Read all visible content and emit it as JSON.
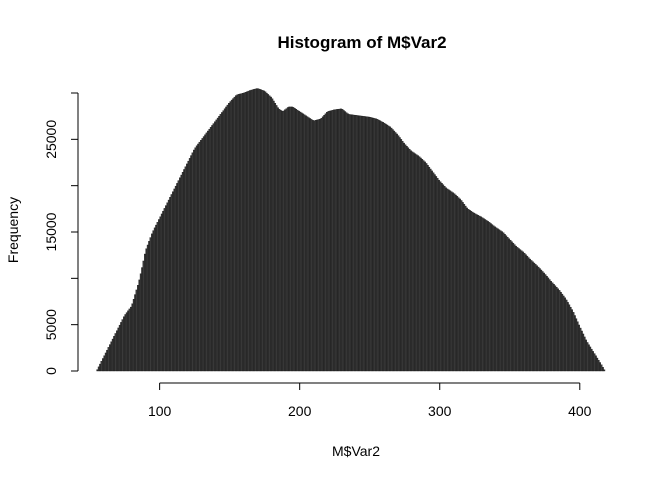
{
  "chart_data": {
    "type": "bar",
    "subtype": "histogram",
    "title": "Histogram of M$Var2",
    "xlabel": "M$Var2",
    "ylabel": "Frequency",
    "xlim": [
      46,
      423
    ],
    "ylim": [
      0,
      30000
    ],
    "x_ticks": [
      100,
      200,
      300,
      400
    ],
    "y_ticks": [
      0,
      5000,
      15000,
      25000
    ],
    "x_tick_labels": [
      "100",
      "200",
      "300",
      "400"
    ],
    "y_tick_labels": [
      "0",
      "5000",
      "15000",
      "25000"
    ],
    "bin_width": 1,
    "bins_range": [
      55,
      418
    ],
    "profile": {
      "x": [
        55,
        60,
        65,
        70,
        75,
        80,
        85,
        88,
        90,
        95,
        100,
        105,
        110,
        115,
        120,
        125,
        130,
        135,
        140,
        145,
        150,
        155,
        160,
        165,
        170,
        175,
        180,
        185,
        188,
        192,
        195,
        200,
        205,
        210,
        215,
        220,
        225,
        230,
        235,
        240,
        245,
        250,
        255,
        260,
        265,
        270,
        275,
        280,
        285,
        290,
        295,
        300,
        305,
        310,
        315,
        320,
        325,
        330,
        335,
        340,
        345,
        350,
        355,
        360,
        365,
        370,
        375,
        380,
        385,
        390,
        395,
        400,
        405,
        410,
        415,
        418
      ],
      "y": [
        0,
        1500,
        3000,
        4500,
        6000,
        7000,
        9500,
        11500,
        13000,
        15000,
        16500,
        18000,
        19500,
        21000,
        22500,
        24000,
        25000,
        26000,
        27000,
        28000,
        29000,
        29800,
        30000,
        30300,
        30500,
        30200,
        29500,
        28300,
        28000,
        28500,
        28500,
        28000,
        27500,
        27000,
        27200,
        28000,
        28200,
        28300,
        27700,
        27600,
        27500,
        27400,
        27200,
        26800,
        26300,
        25500,
        24500,
        23700,
        23200,
        22500,
        21500,
        20500,
        19700,
        19200,
        18500,
        17500,
        17000,
        16600,
        16100,
        15500,
        15000,
        14200,
        13400,
        12800,
        12000,
        11300,
        10500,
        9600,
        8800,
        7800,
        6500,
        4800,
        3200,
        2000,
        800,
        0
      ]
    }
  }
}
